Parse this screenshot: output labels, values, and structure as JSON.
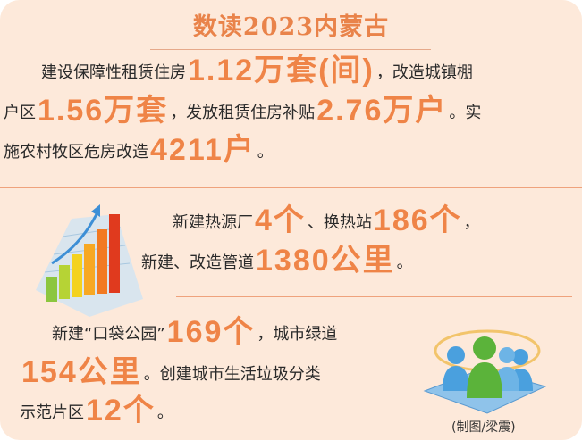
{
  "title": "数读2023内蒙古",
  "sections": [
    {
      "lines": [
        [
          {
            "t": "建设保障性租赁住房"
          },
          {
            "t": "1.12万套(间)",
            "big": true
          },
          {
            "t": "，改造城镇棚"
          }
        ],
        [
          {
            "t": "户区"
          },
          {
            "t": "1.56万套",
            "big": true
          },
          {
            "t": "，发放租赁住房补贴"
          },
          {
            "t": "2.76万户",
            "big": true
          },
          {
            "t": "。实"
          }
        ],
        [
          {
            "t": "施农村牧区危房改造"
          },
          {
            "t": "4211户",
            "big": true
          },
          {
            "t": "。"
          }
        ]
      ]
    },
    {
      "lines": [
        [
          {
            "t": "新建热源厂"
          },
          {
            "t": "4个",
            "big": true
          },
          {
            "t": "、换热站"
          },
          {
            "t": "186个",
            "big": true
          },
          {
            "t": "，"
          }
        ],
        [
          {
            "t": "新建、改造管道"
          },
          {
            "t": "1380公里",
            "big": true
          },
          {
            "t": "。"
          }
        ]
      ]
    },
    {
      "lines": [
        [
          {
            "t": "新建“口袋公园”"
          },
          {
            "t": "169个",
            "big": true
          },
          {
            "t": "，城市绿道"
          }
        ],
        [
          {
            "t": "154公里",
            "big": true
          },
          {
            "t": "。创建城市生活垃圾分类"
          }
        ],
        [
          {
            "t": "示范片区"
          },
          {
            "t": "12个",
            "big": true
          },
          {
            "t": "。"
          }
        ]
      ]
    }
  ],
  "credit": "(制图/梁震)",
  "colors": {
    "accent": "#ef8447",
    "background": "#fde9da"
  },
  "icons": [
    "bar-chart-growth-icon",
    "people-group-icon"
  ]
}
